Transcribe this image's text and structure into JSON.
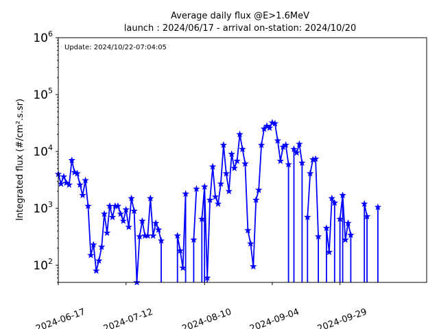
{
  "chart_data": {
    "type": "line",
    "title": "Average daily flux @E>1.6MeV",
    "subtitle": "launch : 2024/06/17 - arrival on-station: 2024/10/20",
    "annotation": "Update: 2024/10/22-07:04:05",
    "ylabel": "Integrated flux (#/cm².s.sr)",
    "xlabel": "",
    "yscale": "log",
    "ylim": [
      50,
      1000000
    ],
    "xlim": [
      "2024-06-17",
      "2024-10-31"
    ],
    "x_ticks": [
      "2024-06-17",
      "2024-07-12",
      "2024-08-10",
      "2024-09-04",
      "2024-09-29"
    ],
    "y_ticks": [
      {
        "value": 100,
        "label": "10",
        "exp": "2"
      },
      {
        "value": 1000,
        "label": "10",
        "exp": "3"
      },
      {
        "value": 10000,
        "label": "10",
        "exp": "4"
      },
      {
        "value": 100000,
        "label": "10",
        "exp": "5"
      },
      {
        "value": 1000000,
        "label": "10",
        "exp": "6"
      }
    ],
    "grid": false,
    "series": [
      {
        "color": "#0000ff",
        "marker": "star",
        "points": [
          [
            "2024-06-17",
            4000
          ],
          [
            "2024-06-18",
            2700
          ],
          [
            "2024-06-19",
            3600
          ],
          [
            "2024-06-20",
            2800
          ],
          [
            "2024-06-21",
            2600
          ],
          [
            "2024-06-22",
            7000
          ],
          [
            "2024-06-23",
            4300
          ],
          [
            "2024-06-24",
            4100
          ],
          [
            "2024-06-25",
            2600
          ],
          [
            "2024-06-26",
            1700
          ],
          [
            "2024-06-27",
            3100
          ],
          [
            "2024-06-28",
            1100
          ],
          [
            "2024-06-29",
            150
          ],
          [
            "2024-06-30",
            230
          ],
          [
            "2024-07-01",
            80
          ],
          [
            "2024-07-02",
            120
          ],
          [
            "2024-07-03",
            210
          ],
          [
            "2024-07-04",
            800
          ],
          [
            "2024-07-05",
            370
          ],
          [
            "2024-07-06",
            1100
          ],
          [
            "2024-07-07",
            700
          ],
          [
            "2024-07-08",
            1100
          ],
          [
            "2024-07-09",
            1100
          ],
          [
            "2024-07-10",
            800
          ],
          [
            "2024-07-11",
            600
          ],
          [
            "2024-07-12",
            950
          ],
          [
            "2024-07-13",
            470
          ],
          [
            "2024-07-14",
            1500
          ],
          [
            "2024-07-15",
            900
          ],
          [
            "2024-07-16",
            50
          ],
          [
            "2024-07-17",
            320
          ],
          [
            "2024-07-18",
            600
          ],
          [
            "2024-07-19",
            330
          ],
          [
            "2024-07-20",
            330
          ],
          [
            "2024-07-21",
            1500
          ],
          [
            "2024-07-22",
            330
          ],
          [
            "2024-07-23",
            550
          ],
          [
            "2024-07-24",
            420
          ],
          [
            "2024-07-25",
            270
          ],
          [
            "2024-07-31",
            330
          ],
          [
            "2024-08-01",
            180
          ],
          [
            "2024-08-02",
            90
          ],
          [
            "2024-08-03",
            1800
          ],
          [
            "2024-08-06",
            280
          ],
          [
            "2024-08-07",
            2200
          ],
          [
            "2024-08-09",
            650
          ],
          [
            "2024-08-10",
            2400
          ],
          [
            "2024-08-11",
            60
          ],
          [
            "2024-08-12",
            1400
          ],
          [
            "2024-08-13",
            5400
          ],
          [
            "2024-08-14",
            1600
          ],
          [
            "2024-08-15",
            1200
          ],
          [
            "2024-08-16",
            2700
          ],
          [
            "2024-08-17",
            13000
          ],
          [
            "2024-08-18",
            4100
          ],
          [
            "2024-08-19",
            2000
          ],
          [
            "2024-08-20",
            9000
          ],
          [
            "2024-08-21",
            5100
          ],
          [
            "2024-08-22",
            6800
          ],
          [
            "2024-08-23",
            20000
          ],
          [
            "2024-08-24",
            11000
          ],
          [
            "2024-08-25",
            6100
          ],
          [
            "2024-08-26",
            410
          ],
          [
            "2024-08-27",
            240
          ],
          [
            "2024-08-28",
            95
          ],
          [
            "2024-08-29",
            1400
          ],
          [
            "2024-08-30",
            2100
          ],
          [
            "2024-08-31",
            13000
          ],
          [
            "2024-09-01",
            25000
          ],
          [
            "2024-09-02",
            28000
          ],
          [
            "2024-09-03",
            26000
          ],
          [
            "2024-09-04",
            32000
          ],
          [
            "2024-09-05",
            31000
          ],
          [
            "2024-09-06",
            15500
          ],
          [
            "2024-09-07",
            6800
          ],
          [
            "2024-09-08",
            12000
          ],
          [
            "2024-09-09",
            13000
          ],
          [
            "2024-09-10",
            5900
          ],
          [
            "2024-09-12",
            11000
          ],
          [
            "2024-09-13",
            9500
          ],
          [
            "2024-09-14",
            13500
          ],
          [
            "2024-09-15",
            6300
          ],
          [
            "2024-09-17",
            700
          ],
          [
            "2024-09-18",
            4100
          ],
          [
            "2024-09-19",
            7200
          ],
          [
            "2024-09-20",
            7400
          ],
          [
            "2024-09-21",
            320
          ],
          [
            "2024-09-24",
            450
          ],
          [
            "2024-09-25",
            170
          ],
          [
            "2024-09-26",
            1500
          ],
          [
            "2024-09-27",
            1250
          ],
          [
            "2024-09-29",
            650
          ],
          [
            "2024-09-30",
            1700
          ],
          [
            "2024-10-01",
            280
          ],
          [
            "2024-10-02",
            550
          ],
          [
            "2024-10-03",
            340
          ],
          [
            "2024-10-08",
            1200
          ],
          [
            "2024-10-09",
            720
          ],
          [
            "2024-10-13",
            1050
          ]
        ]
      }
    ],
    "drops_to_axis": [
      "2024-07-16",
      "2024-07-25",
      "2024-07-31",
      "2024-08-03",
      "2024-08-06",
      "2024-08-09",
      "2024-08-10",
      "2024-08-11",
      "2024-09-10",
      "2024-09-12",
      "2024-09-15",
      "2024-09-17",
      "2024-09-21",
      "2024-09-24",
      "2024-09-27",
      "2024-09-29",
      "2024-09-30",
      "2024-10-03",
      "2024-10-08",
      "2024-10-09",
      "2024-10-13"
    ]
  }
}
